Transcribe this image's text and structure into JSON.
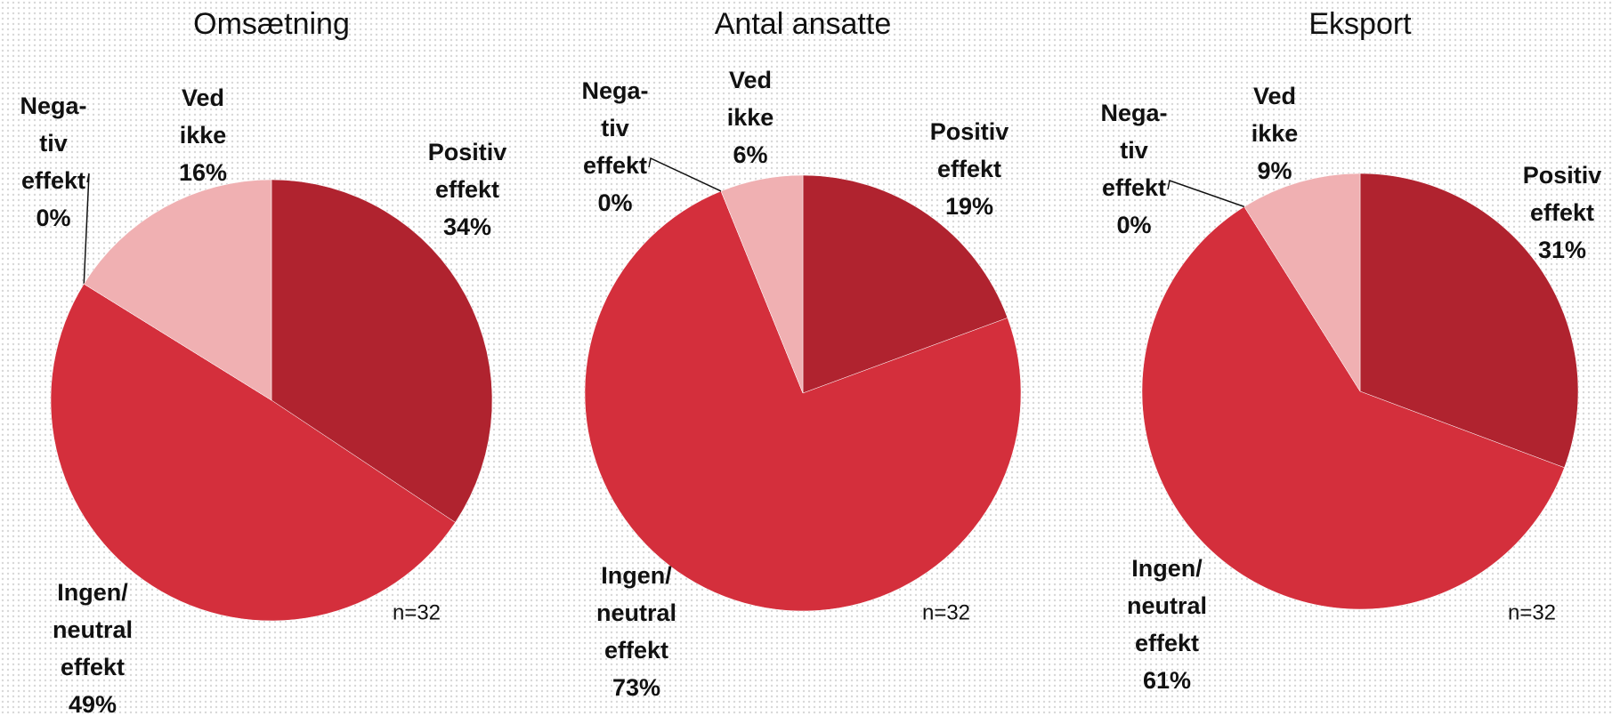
{
  "chart_data": [
    {
      "type": "pie",
      "title": "Omsætning",
      "categories": [
        "Positiv effekt",
        "Ingen/ neutral effekt",
        "Nega-tiv effekt",
        "Ved ikke"
      ],
      "values": [
        34,
        49,
        0,
        16
      ],
      "value_labels": [
        "34%",
        "49%",
        "0%",
        "16%"
      ],
      "colors": [
        "#b0232f",
        "#d42f3c",
        "#8c1a24",
        "#f0b0b2"
      ],
      "note": "n=32"
    },
    {
      "type": "pie",
      "title": "Antal ansatte",
      "categories": [
        "Positiv effekt",
        "Ingen/ neutral effekt",
        "Nega-tiv effekt",
        "Ved ikke"
      ],
      "values": [
        19,
        73,
        0,
        6
      ],
      "value_labels": [
        "19%",
        "73%",
        "0%",
        "6%"
      ],
      "colors": [
        "#b0232f",
        "#d42f3c",
        "#8c1a24",
        "#f0b0b2"
      ],
      "note": "n=32"
    },
    {
      "type": "pie",
      "title": "Eksport",
      "categories": [
        "Positiv effekt",
        "Ingen/ neutral effekt",
        "Nega-tiv effekt",
        "Ved ikke"
      ],
      "values": [
        31,
        61,
        0,
        9
      ],
      "value_labels": [
        "31%",
        "61%",
        "0%",
        "9%"
      ],
      "colors": [
        "#b0232f",
        "#d42f3c",
        "#8c1a24",
        "#f0b0b2"
      ],
      "note": "n=32"
    }
  ]
}
